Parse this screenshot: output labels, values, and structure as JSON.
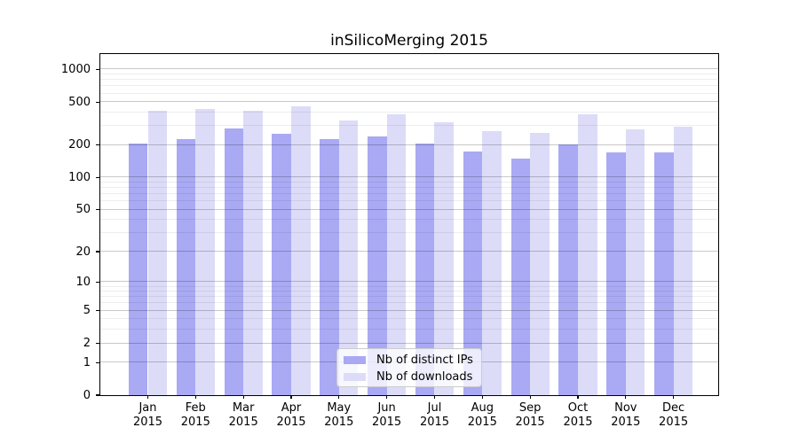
{
  "title": "inSilicoMerging 2015",
  "chart_data": {
    "type": "bar",
    "title": "inSilicoMerging 2015",
    "categories": [
      "Jan 2015",
      "Feb 2015",
      "Mar 2015",
      "Apr 2015",
      "May 2015",
      "Jun 2015",
      "Jul 2015",
      "Aug 2015",
      "Sep 2015",
      "Oct 2015",
      "Nov 2015",
      "Dec 2015"
    ],
    "series": [
      {
        "name": "Nb of distinct IPs",
        "color": "#a9a9f4",
        "values": [
          206,
          226,
          285,
          256,
          228,
          239,
          208,
          174,
          149,
          202,
          172,
          172
        ]
      },
      {
        "name": "Nb of downloads",
        "color": "#dcdcf8",
        "values": [
          415,
          431,
          415,
          456,
          340,
          385,
          323,
          271,
          259,
          383,
          281,
          294
        ]
      }
    ],
    "xlabel": "",
    "ylabel": "",
    "y_scale": "log1p",
    "y_ticks": [
      0,
      1,
      2,
      5,
      10,
      20,
      50,
      100,
      200,
      500,
      1000
    ],
    "ylim": [
      0,
      1385
    ],
    "grid": "major-and-minor, drawn over bars",
    "legend_position": "bottom-center"
  },
  "legend": {
    "items": [
      {
        "label": "Nb of distinct IPs",
        "color": "#a9a9f4"
      },
      {
        "label": "Nb of downloads",
        "color": "#dcdcf8"
      }
    ]
  },
  "colors": {
    "bar_distinct_ips": "#a9a9f4",
    "bar_downloads": "#dcdcf8",
    "grid_major": "#c9c9c9",
    "grid_minor": "#ededed",
    "axis": "#000000",
    "background": "#ffffff"
  }
}
